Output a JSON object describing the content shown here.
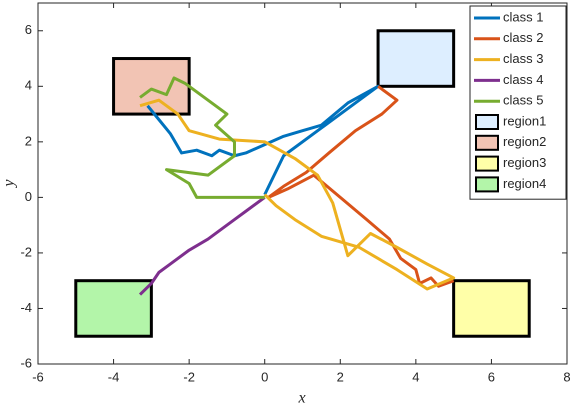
{
  "chart_data": {
    "type": "line",
    "xlabel": "x",
    "ylabel": "y",
    "xlim": [
      -6,
      8
    ],
    "ylim": [
      -6,
      7
    ],
    "xticks": [
      -6,
      -4,
      -2,
      0,
      2,
      4,
      6,
      8
    ],
    "yticks": [
      -6,
      -4,
      -2,
      0,
      2,
      4,
      6
    ],
    "legend": "upper right",
    "series": [
      {
        "name": "class 1",
        "color": "#0072bd",
        "x": [
          -3.1,
          -2.8,
          -2.5,
          -2.2,
          -1.8,
          -1.4,
          -1.2,
          -0.8,
          -0.5,
          0,
          0.5,
          1,
          1.5,
          2.2,
          3,
          2.5,
          1.5,
          0.5,
          0
        ],
        "values": [
          3.3,
          2.8,
          2.3,
          1.6,
          1.7,
          1.5,
          1.7,
          1.5,
          1.6,
          1.9,
          2.2,
          2.4,
          2.6,
          3.4,
          4,
          3.5,
          2.5,
          1.5,
          0.1
        ]
      },
      {
        "name": "class 2",
        "color": "#d95319",
        "x": [
          3,
          3.5,
          3.1,
          2.4,
          1.7,
          1.1,
          0.5,
          0.1,
          0.6,
          1.3,
          2,
          2.7,
          3.3,
          3.6,
          4,
          4.1,
          4.4,
          4.6,
          5
        ],
        "values": [
          4,
          3.5,
          3,
          2.4,
          1.6,
          0.9,
          0.4,
          0,
          0.3,
          0.8,
          0,
          -0.8,
          -1.5,
          -2.2,
          -2.6,
          -3.1,
          -2.9,
          -3.2,
          -3
        ]
      },
      {
        "name": "class 3",
        "color": "#edb120",
        "x": [
          -3.3,
          -2.8,
          -2.3,
          -2,
          -1.2,
          0,
          0.8,
          1.4,
          1.8,
          2.2,
          2.8,
          3.5,
          4.3,
          5,
          4.3,
          3.5,
          2.5,
          1.5,
          0.8,
          0.3,
          0
        ],
        "values": [
          3.3,
          3.5,
          3,
          2.4,
          2.1,
          2,
          1.4,
          0.8,
          -0.2,
          -2.1,
          -1.3,
          -1.8,
          -2.4,
          -2.9,
          -3.3,
          -2.6,
          -1.8,
          -1.4,
          -0.8,
          -0.3,
          0.1
        ]
      },
      {
        "name": "class 4",
        "color": "#7e2f8e",
        "x": [
          0,
          -0.5,
          -0.8,
          -1.2,
          -1.5,
          -2,
          -2.5,
          -2.8,
          -3,
          -3.3
        ],
        "values": [
          0,
          -0.5,
          -0.8,
          -1.2,
          -1.5,
          -1.9,
          -2.4,
          -2.7,
          -3.1,
          -3.5
        ]
      },
      {
        "name": "class 5",
        "color": "#77ac30",
        "x": [
          -3.3,
          -3,
          -2.6,
          -2.4,
          -2.1,
          -1.5,
          -1,
          -1.3,
          -0.8,
          -0.8,
          -1.5,
          -2.6,
          -2,
          -1.8,
          -1,
          0
        ],
        "values": [
          3.6,
          3.9,
          3.7,
          4.3,
          4.1,
          3.5,
          3,
          2.6,
          2,
          1.5,
          0.8,
          1,
          0.5,
          0,
          0,
          0
        ]
      }
    ],
    "regions": [
      {
        "name": "region1",
        "color": "#ddeeff",
        "x": [
          3,
          5
        ],
        "y": [
          4,
          6
        ]
      },
      {
        "name": "region2",
        "color": "#f2c4b4",
        "x": [
          -4,
          -2
        ],
        "y": [
          3,
          5
        ]
      },
      {
        "name": "region3",
        "color": "#ffffa8",
        "x": [
          5,
          7
        ],
        "y": [
          -5,
          -3
        ]
      },
      {
        "name": "region4",
        "color": "#b3f5a9",
        "x": [
          -5,
          -3
        ],
        "y": [
          -5,
          -3
        ]
      }
    ]
  }
}
